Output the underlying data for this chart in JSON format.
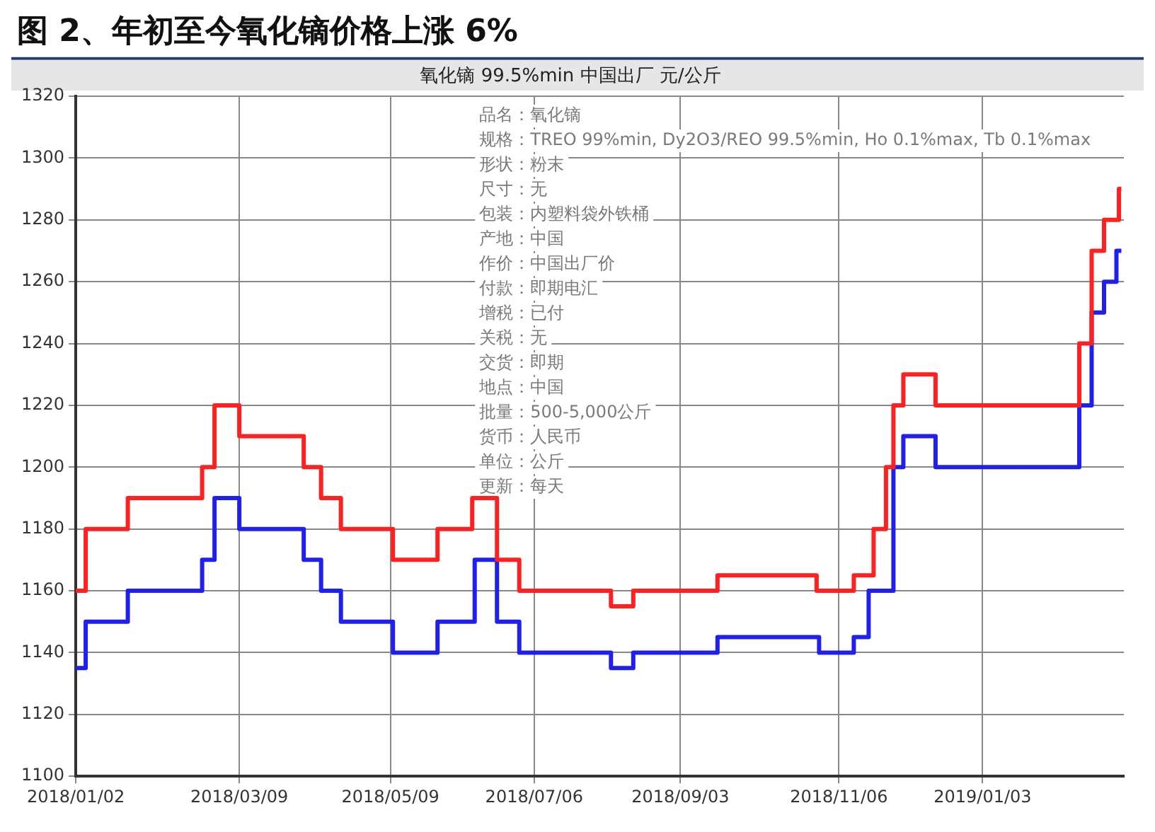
{
  "chart_data": {
    "type": "step",
    "title": "图 2、年初至今氧化镝价格上涨 6%",
    "subtitle": "氧化镝 99.5%min 中国出厂 元/公斤",
    "series": [
      {
        "color": "#ff2020",
        "x": [
          "2018-01-02",
          "2018-01-06",
          "2018-01-23",
          "2018-02-22",
          "2018-02-27",
          "2018-03-09",
          "2018-04-04",
          "2018-04-11",
          "2018-04-19",
          "2018-05-10",
          "2018-05-28",
          "2018-06-11",
          "2018-06-21",
          "2018-06-30",
          "2018-08-06",
          "2018-08-15",
          "2018-09-18",
          "2018-10-28",
          "2018-11-12",
          "2018-11-20",
          "2018-11-25",
          "2018-11-28",
          "2018-12-02",
          "2018-12-15",
          "2019-02-11",
          "2019-02-16",
          "2019-02-21",
          "2019-02-27",
          "2019-02-28"
        ],
        "values": [
          1160,
          1180,
          1190,
          1200,
          1220,
          1210,
          1200,
          1190,
          1180,
          1170,
          1180,
          1190,
          1170,
          1160,
          1155,
          1160,
          1165,
          1160,
          1165,
          1180,
          1200,
          1220,
          1230,
          1220,
          1240,
          1270,
          1280,
          1290,
          1290
        ]
      },
      {
        "color": "#2020ee",
        "x": [
          "2018-01-02",
          "2018-01-06",
          "2018-01-23",
          "2018-02-22",
          "2018-02-27",
          "2018-03-09",
          "2018-04-04",
          "2018-04-11",
          "2018-04-19",
          "2018-05-10",
          "2018-05-28",
          "2018-06-12",
          "2018-06-21",
          "2018-06-30",
          "2018-08-06",
          "2018-08-15",
          "2018-09-18",
          "2018-10-29",
          "2018-11-12",
          "2018-11-18",
          "2018-11-28",
          "2018-12-02",
          "2018-12-15",
          "2019-02-11",
          "2019-02-16",
          "2019-02-21",
          "2019-02-26",
          "2019-02-28"
        ],
        "values": [
          1135,
          1150,
          1160,
          1170,
          1190,
          1180,
          1170,
          1160,
          1150,
          1140,
          1150,
          1170,
          1150,
          1140,
          1135,
          1140,
          1145,
          1140,
          1145,
          1160,
          1200,
          1210,
          1200,
          1220,
          1250,
          1260,
          1270,
          1270
        ]
      }
    ],
    "xlim": [
      "2018-01-02",
      "2019-03-01"
    ],
    "xticks": [
      {
        "value": "2018-01-02",
        "label": "2018/01/02"
      },
      {
        "value": "2018-03-09",
        "label": "2018/03/09"
      },
      {
        "value": "2018-05-09",
        "label": "2018/05/09"
      },
      {
        "value": "2018-07-06",
        "label": "2018/07/06"
      },
      {
        "value": "2018-09-03",
        "label": "2018/09/03"
      },
      {
        "value": "2018-11-06",
        "label": "2018/11/06"
      },
      {
        "value": "2019-01-03",
        "label": "2019/01/03"
      }
    ],
    "ylim": [
      1100,
      1320
    ],
    "yticks": [
      1100,
      1120,
      1140,
      1160,
      1180,
      1200,
      1220,
      1240,
      1260,
      1280,
      1300,
      1320
    ],
    "grid": true,
    "legend": false,
    "line_style": "solid",
    "marker": "none",
    "annotations": [
      "品名：氧化镝",
      "规格：TREO 99%min, Dy2O3/REO 99.5%min, Ho 0.1%max, Tb 0.1%max",
      "形状：粉末",
      "尺寸：无",
      "包装：内塑料袋外铁桶",
      "产地：中国",
      "作价：中国出厂价",
      "付款：即期电汇",
      "增税：已付",
      "关税：无",
      "交货：即期",
      "地点：中国",
      "批量：500-5,000公斤",
      "货币：人民币",
      "单位：公斤",
      "更新：每天"
    ]
  }
}
